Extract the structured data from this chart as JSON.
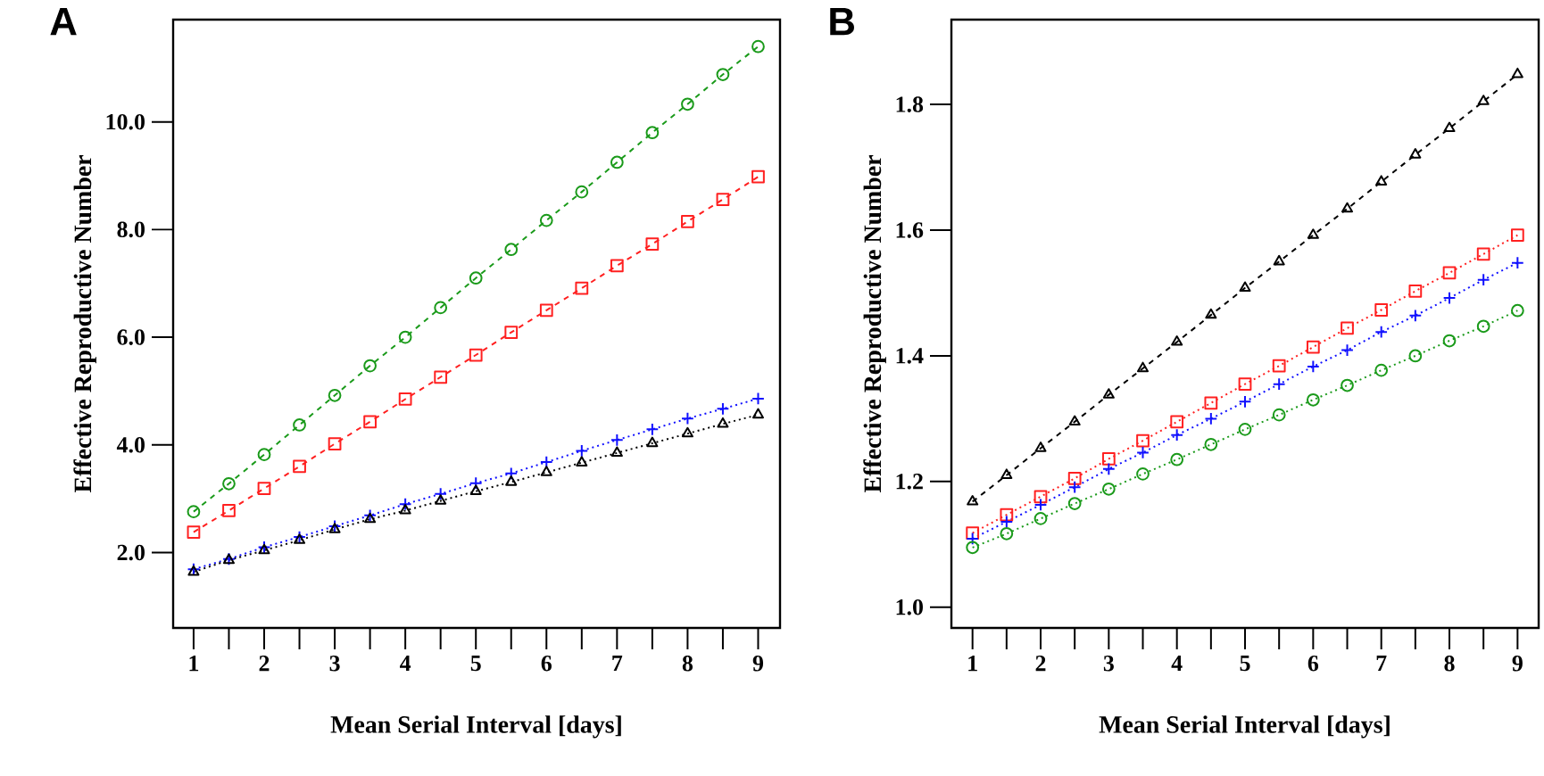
{
  "chart_data": [
    {
      "type": "line",
      "title": "A",
      "xlabel": "Mean Serial Interval [days]",
      "ylabel": "Effective Reproductive Number",
      "x": [
        1,
        1.5,
        2,
        2.5,
        3,
        3.5,
        4,
        4.5,
        5,
        5.5,
        6,
        6.5,
        7,
        7.5,
        8,
        8.5,
        9
      ],
      "xlim": [
        0.71,
        9.31
      ],
      "ylim": [
        0.6,
        11.9
      ],
      "xticks": [
        1,
        {
          "value": 1.5,
          "label": null
        },
        2,
        {
          "value": 2.5,
          "label": null
        },
        3,
        {
          "value": 3.5,
          "label": null
        },
        4,
        {
          "value": 4.5,
          "label": null
        },
        5,
        {
          "value": 5.5,
          "label": null
        },
        6,
        {
          "value": 6.5,
          "label": null
        },
        7,
        {
          "value": 7.5,
          "label": null
        },
        8,
        {
          "value": 8.5,
          "label": null
        },
        9
      ],
      "yticks": [
        {
          "value": 2,
          "label": "2.0"
        },
        {
          "value": 4,
          "label": "4.0"
        },
        {
          "value": 6,
          "label": "6.0"
        },
        {
          "value": 8,
          "label": "8.0"
        },
        {
          "value": 10,
          "label": "10.0"
        }
      ],
      "series": [
        {
          "color": "#1a9a1a",
          "marker": "circle",
          "line_style": "dashed",
          "values": [
            2.76,
            3.28,
            3.82,
            4.37,
            4.92,
            5.47,
            6.0,
            6.55,
            7.1,
            7.63,
            8.17,
            8.7,
            9.25,
            9.8,
            10.33,
            10.88,
            11.4
          ]
        },
        {
          "color": "#ff2020",
          "marker": "square",
          "line_style": "dashed",
          "values": [
            2.38,
            2.78,
            3.19,
            3.6,
            4.02,
            4.43,
            4.85,
            5.26,
            5.67,
            6.09,
            6.5,
            6.91,
            7.33,
            7.73,
            8.15,
            8.56,
            8.98
          ]
        },
        {
          "color": "#1010ff",
          "marker": "cross",
          "line_style": "dotted",
          "values": [
            1.69,
            1.88,
            2.1,
            2.29,
            2.49,
            2.69,
            2.9,
            3.09,
            3.29,
            3.47,
            3.68,
            3.89,
            4.09,
            4.29,
            4.49,
            4.67,
            4.86
          ]
        },
        {
          "color": "#000000",
          "marker": "triangle",
          "line_style": "dotted",
          "values": [
            1.64,
            1.86,
            2.04,
            2.23,
            2.43,
            2.62,
            2.78,
            2.96,
            3.14,
            3.31,
            3.49,
            3.67,
            3.85,
            4.03,
            4.21,
            4.39,
            4.56
          ]
        }
      ]
    },
    {
      "type": "line",
      "title": "B",
      "xlabel": "Mean Serial Interval [days]",
      "ylabel": "Effective Reproductive Number",
      "x": [
        1,
        1.5,
        2,
        2.5,
        3,
        3.5,
        4,
        4.5,
        5,
        5.5,
        6,
        6.5,
        7,
        7.5,
        8,
        8.5,
        9
      ],
      "xlim": [
        0.69,
        9.31
      ],
      "ylim": [
        0.967,
        1.935
      ],
      "xticks": [
        1,
        {
          "value": 1.5,
          "label": null
        },
        2,
        {
          "value": 2.5,
          "label": null
        },
        3,
        {
          "value": 3.5,
          "label": null
        },
        4,
        {
          "value": 4.5,
          "label": null
        },
        5,
        {
          "value": 5.5,
          "label": null
        },
        6,
        {
          "value": 6.5,
          "label": null
        },
        7,
        {
          "value": 7.5,
          "label": null
        },
        8,
        {
          "value": 8.5,
          "label": null
        },
        9
      ],
      "yticks": [
        {
          "value": 1,
          "label": "1.0"
        },
        1.2,
        1.4,
        1.6,
        1.8
      ],
      "series": [
        {
          "color": "#000000",
          "marker": "triangle",
          "line_style": "dashed",
          "values": [
            1.168,
            1.21,
            1.253,
            1.295,
            1.338,
            1.38,
            1.422,
            1.465,
            1.508,
            1.55,
            1.592,
            1.634,
            1.677,
            1.72,
            1.762,
            1.805,
            1.848
          ]
        },
        {
          "color": "#ff2020",
          "marker": "square",
          "line_style": "dotted",
          "values": [
            1.118,
            1.147,
            1.176,
            1.205,
            1.236,
            1.265,
            1.295,
            1.325,
            1.355,
            1.384,
            1.414,
            1.444,
            1.473,
            1.503,
            1.532,
            1.562,
            1.592
          ]
        },
        {
          "color": "#1010ff",
          "marker": "cross",
          "line_style": "dotted",
          "values": [
            1.109,
            1.136,
            1.163,
            1.191,
            1.22,
            1.246,
            1.274,
            1.3,
            1.327,
            1.355,
            1.383,
            1.409,
            1.438,
            1.464,
            1.492,
            1.521,
            1.548
          ]
        },
        {
          "color": "#1a9a1a",
          "marker": "circle",
          "line_style": "dotted",
          "values": [
            1.095,
            1.117,
            1.141,
            1.165,
            1.188,
            1.212,
            1.235,
            1.259,
            1.283,
            1.306,
            1.33,
            1.353,
            1.377,
            1.4,
            1.424,
            1.447,
            1.472
          ]
        }
      ]
    }
  ]
}
